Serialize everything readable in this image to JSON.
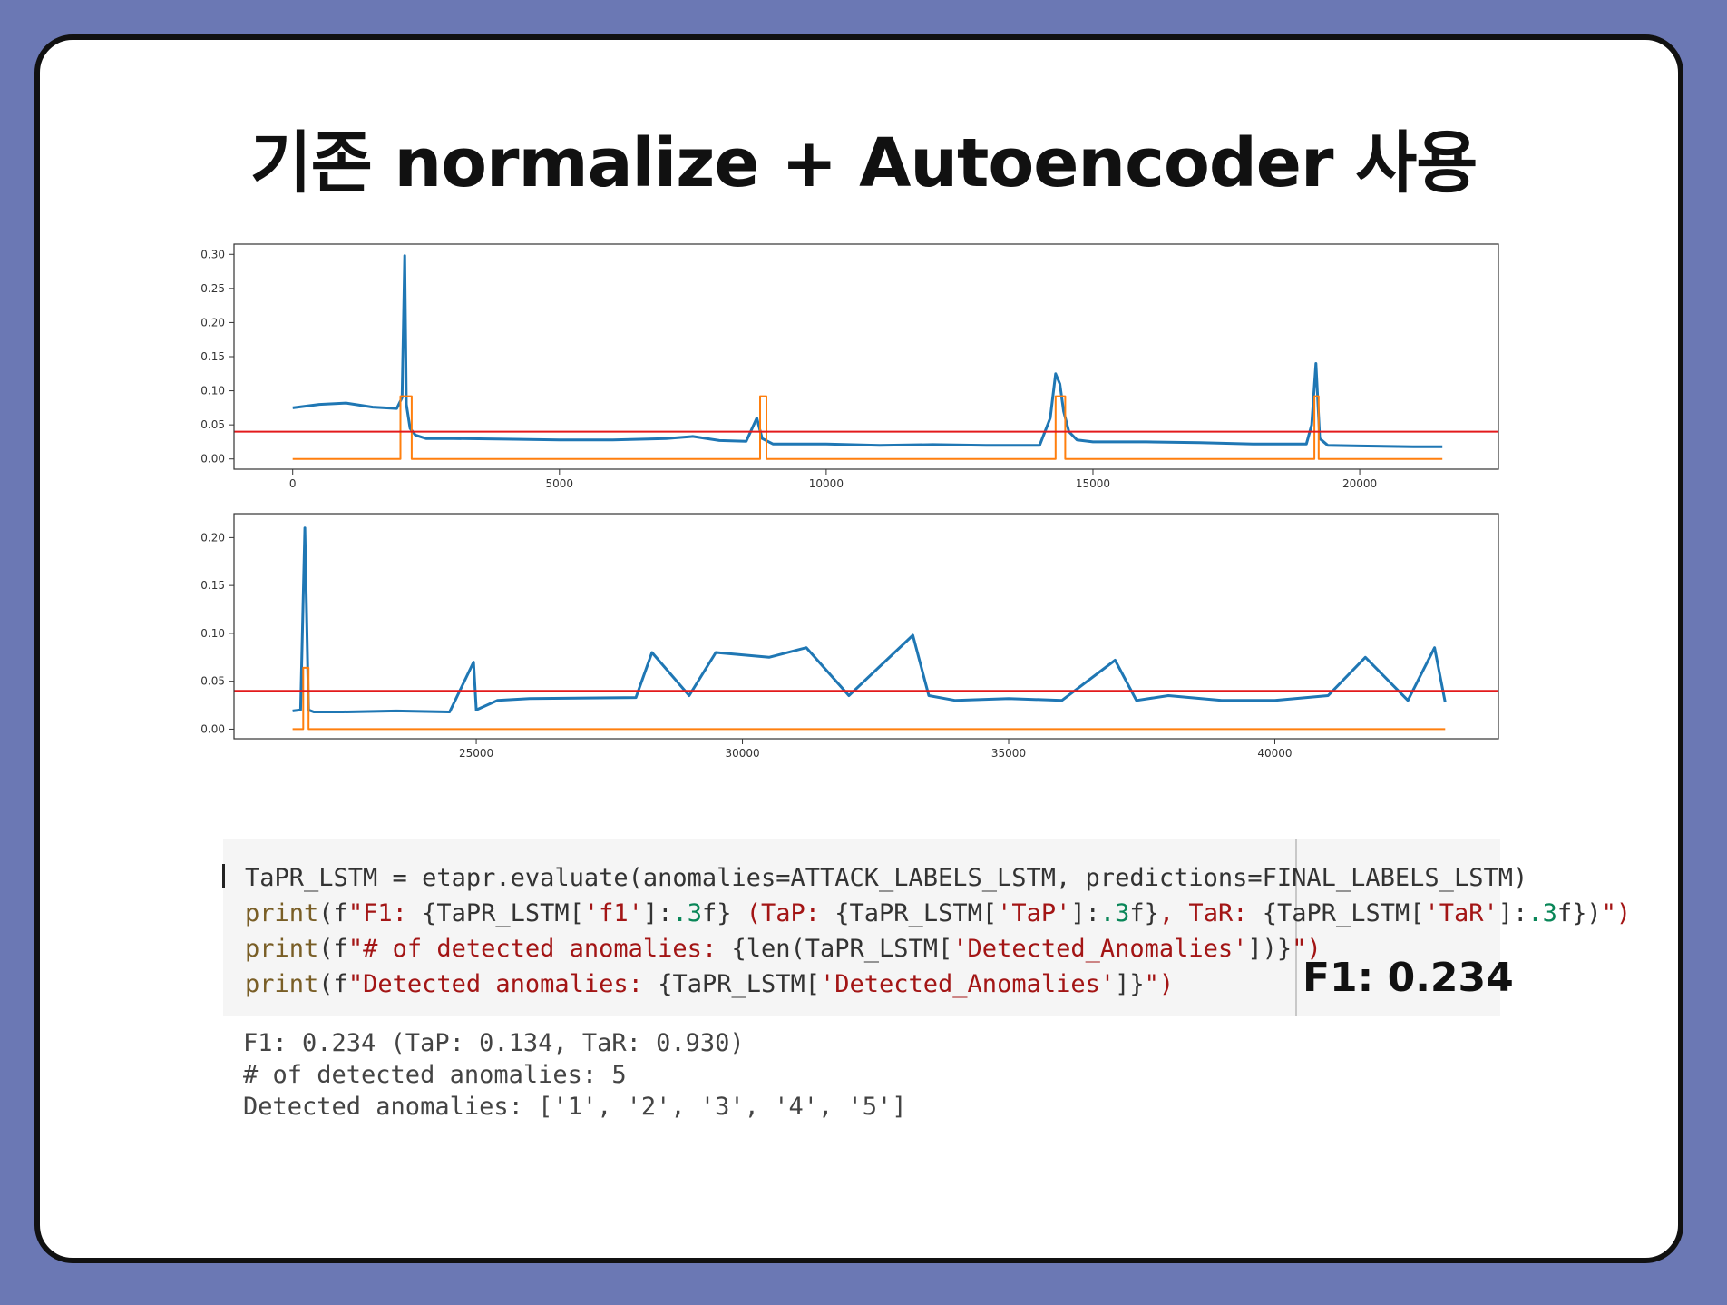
{
  "slide": {
    "title": "기존 normalize + Autoencoder 사용"
  },
  "chart_data": [
    {
      "type": "line",
      "title": "",
      "xlabel": "",
      "ylabel": "",
      "xlim": [
        -1100,
        22600
      ],
      "ylim": [
        -0.015,
        0.315
      ],
      "xticks": [
        0,
        5000,
        10000,
        15000,
        20000
      ],
      "xtick_labels": [
        "0",
        "5000",
        "10000",
        "15000",
        "20000"
      ],
      "yticks": [
        0.0,
        0.05,
        0.1,
        0.15,
        0.2,
        0.25,
        0.3
      ],
      "ytick_labels": [
        "0.00",
        "0.05",
        "0.10",
        "0.15",
        "0.20",
        "0.25",
        "0.30"
      ],
      "grid": false,
      "series": [
        {
          "color": "#1f77b4",
          "x": [
            0,
            500,
            1000,
            1500,
            1950,
            2050,
            2100,
            2130,
            2200,
            2300,
            2500,
            3000,
            4000,
            5000,
            6000,
            7000,
            7500,
            8000,
            8500,
            8700,
            8800,
            9000,
            10000,
            11000,
            12000,
            13000,
            14000,
            14200,
            14300,
            14380,
            14450,
            14550,
            14700,
            15000,
            16000,
            17000,
            18000,
            19000,
            19100,
            19180,
            19250,
            19400,
            20000,
            21000,
            21550
          ],
          "y": [
            0.075,
            0.08,
            0.082,
            0.076,
            0.074,
            0.09,
            0.298,
            0.08,
            0.045,
            0.035,
            0.03,
            0.03,
            0.029,
            0.028,
            0.028,
            0.03,
            0.033,
            0.027,
            0.026,
            0.06,
            0.03,
            0.022,
            0.022,
            0.02,
            0.021,
            0.02,
            0.02,
            0.06,
            0.125,
            0.11,
            0.07,
            0.04,
            0.028,
            0.025,
            0.025,
            0.024,
            0.022,
            0.022,
            0.05,
            0.14,
            0.03,
            0.02,
            0.019,
            0.018,
            0.018
          ]
        },
        {
          "color": "#ff7f0e",
          "x": [
            0,
            2020,
            2020,
            2230,
            2230,
            8760,
            8760,
            8880,
            8880,
            14300,
            14300,
            14480,
            14480,
            19150,
            19150,
            19230,
            19230,
            21550
          ],
          "y": [
            0,
            0,
            0.092,
            0.092,
            0,
            0,
            0.092,
            0.092,
            0,
            0,
            0.092,
            0.092,
            0,
            0,
            0.092,
            0.092,
            0,
            0
          ]
        },
        {
          "color": "#e31a1c",
          "y_constant": 0.04
        }
      ]
    },
    {
      "type": "line",
      "title": "",
      "xlabel": "",
      "ylabel": "",
      "xlim": [
        20450,
        44200
      ],
      "ylim": [
        -0.01,
        0.225
      ],
      "xticks": [
        25000,
        30000,
        35000,
        40000
      ],
      "xtick_labels": [
        "25000",
        "30000",
        "35000",
        "40000"
      ],
      "yticks": [
        0.0,
        0.05,
        0.1,
        0.15,
        0.2
      ],
      "ytick_labels": [
        "0.00",
        "0.05",
        "0.10",
        "0.15",
        "0.20"
      ],
      "grid": false,
      "series": [
        {
          "color": "#1f77b4",
          "x": [
            21550,
            21700,
            21780,
            21850,
            21950,
            22500,
            23500,
            24500,
            24950,
            25000,
            25400,
            26000,
            28000,
            28300,
            29000,
            29500,
            30500,
            31200,
            32000,
            33200,
            33500,
            34000,
            35000,
            36000,
            37000,
            37400,
            38000,
            39000,
            40000,
            41000,
            41700,
            42500,
            43000,
            43200
          ],
          "y": [
            0.019,
            0.02,
            0.21,
            0.02,
            0.018,
            0.018,
            0.019,
            0.018,
            0.07,
            0.02,
            0.03,
            0.032,
            0.033,
            0.08,
            0.035,
            0.08,
            0.075,
            0.085,
            0.035,
            0.098,
            0.035,
            0.03,
            0.032,
            0.03,
            0.072,
            0.03,
            0.035,
            0.03,
            0.03,
            0.035,
            0.075,
            0.03,
            0.085,
            0.028
          ]
        },
        {
          "color": "#ff7f0e",
          "x": [
            21550,
            21750,
            21750,
            21850,
            21850,
            43200
          ],
          "y": [
            0,
            0,
            0.064,
            0.064,
            0,
            0
          ]
        },
        {
          "color": "#e31a1c",
          "y_constant": 0.04
        }
      ]
    }
  ],
  "code": {
    "line1": {
      "a": "TaPR_LSTM = etapr.evaluate(anomalies=ATTACK_LABELS_LSTM, predictions=FINAL_LABELS_LSTM)"
    },
    "line2": {
      "fn": "print",
      "p1": "(",
      "f": "f",
      "s1": "\"F1: ",
      "d1": "{TaPR_LSTM[",
      "s2": "'f1'",
      "d2": "]:",
      "n1": ".3",
      "d3": "f}",
      "s3": " (TaP: ",
      "d4": "{TaPR_LSTM[",
      "s4": "'TaP'",
      "d5": "]:",
      "n2": ".3",
      "d6": "f}",
      "s5": ", TaR: ",
      "d7": "{TaPR_LSTM[",
      "s6": "'TaR'",
      "d8": "]:",
      "n3": ".3",
      "d9": "f})",
      "s7": "\")"
    },
    "line3": {
      "fn": "print",
      "p1": "(",
      "f": "f",
      "s1": "\"# of detected anomalies: ",
      "d1": "{len(TaPR_LSTM[",
      "s2": "'Detected_Anomalies'",
      "d2": "])}",
      "s3": "\")"
    },
    "line4": {
      "fn": "print",
      "p1": "(",
      "f": "f",
      "s1": "\"Detected anomalies: ",
      "d1": "{TaPR_LSTM[",
      "s2": "'Detected_Anomalies'",
      "d2": "]}",
      "s3": "\")"
    }
  },
  "f1_badge": "F1: 0.234",
  "output": {
    "line1": "F1: 0.234 (TaP: 0.134, TaR: 0.930)",
    "line2": "# of detected anomalies: 5",
    "line3": "Detected anomalies: ['1', '2', '3', '4', '5']"
  }
}
